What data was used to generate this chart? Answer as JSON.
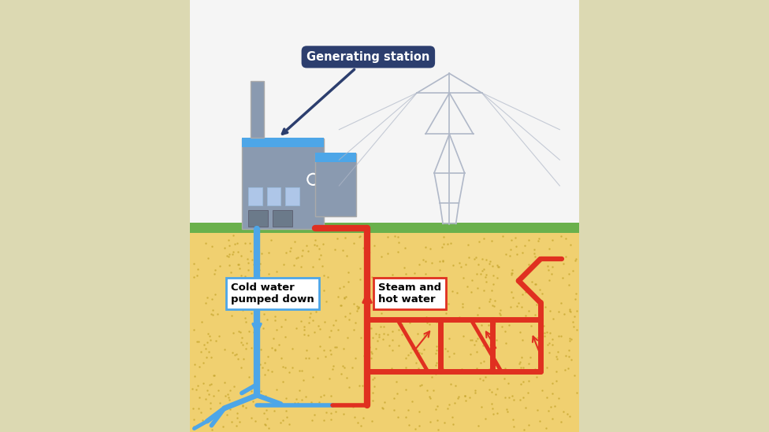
{
  "bg_color": "#f0f0d0",
  "sky_color": "#f5f5f5",
  "ground_color": "#6ab04c",
  "earth_color": "#f0d070",
  "dot_color": "#c8a832",
  "blue_pipe": "#4da6e8",
  "red_pipe": "#e03020",
  "label_box_blue_border": "#4da6e8",
  "label_box_red_border": "#e03020",
  "gen_station_bg": "#2c3e6e",
  "title": "Generating station",
  "cold_water_label": "Cold water\npumped down",
  "hot_water_label": "Steam and\nhot water",
  "fig_width": 9.76,
  "fig_height": 5.49,
  "outer_bg": "#dcd9b2",
  "pylon_color": "#b0b8c8",
  "factory_grey": "#8a9ab0",
  "factory_dark": "#6b7a8a",
  "factory_blue_roof": "#4da6e8",
  "window_color": "#aec6e8"
}
